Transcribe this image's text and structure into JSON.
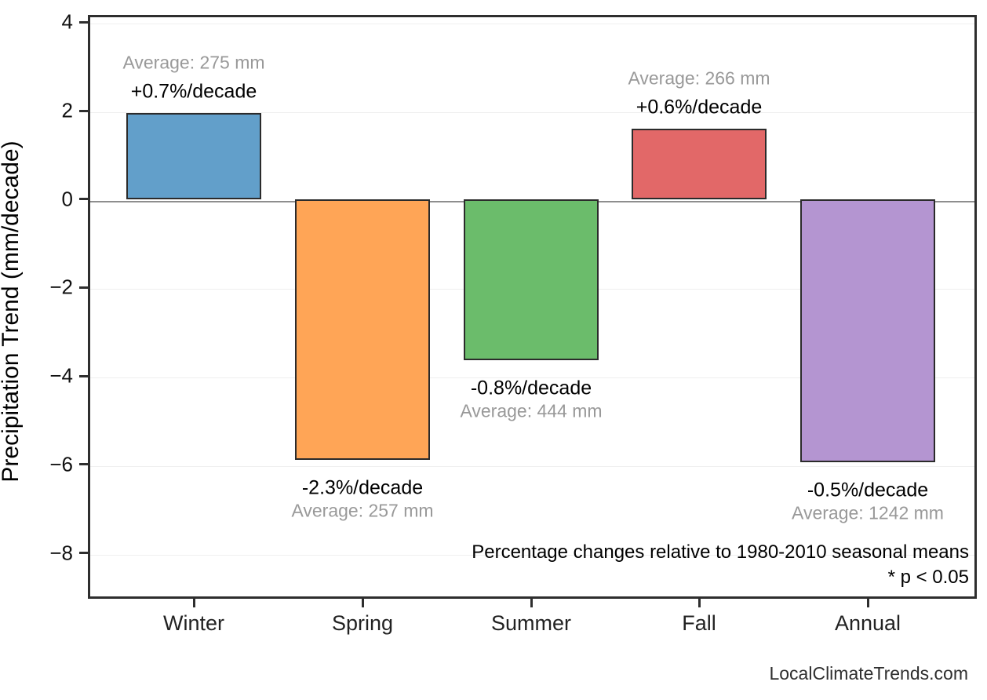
{
  "chart_data": {
    "type": "bar",
    "title": "",
    "xlabel": "",
    "ylabel": "Precipitation Trend (mm/decade)",
    "categories": [
      "Winter",
      "Spring",
      "Summer",
      "Fall",
      "Annual"
    ],
    "values": [
      1.95,
      -5.9,
      -3.65,
      1.6,
      -5.95
    ],
    "bar_labels": [
      {
        "percent": "+0.7%/decade",
        "average": "Average: 275 mm"
      },
      {
        "percent": "-2.3%/decade",
        "average": "Average: 257 mm"
      },
      {
        "percent": "-0.8%/decade",
        "average": "Average: 444 mm"
      },
      {
        "percent": "+0.6%/decade",
        "average": "Average: 266 mm"
      },
      {
        "percent": "-0.5%/decade",
        "average": "Average: 1242 mm"
      }
    ],
    "bar_colors": [
      "#629fca",
      "#ffa556",
      "#6bbc6b",
      "#e26868",
      "#b495d1"
    ],
    "bar_edge_color": "#2b2b2b",
    "yticks": [
      4,
      2,
      0,
      -2,
      -4,
      -6,
      -8
    ],
    "ytick_labels": [
      "4",
      "2",
      "0",
      "−2",
      "−4",
      "−6",
      "−8"
    ],
    "ylim": [
      -9.05,
      4.17
    ],
    "grid": "horizontal-only",
    "legend": "none",
    "zero_line": true,
    "annotations": {
      "note_line1": "Percentage changes relative to 1980-2010 seasonal means",
      "note_line2": "* p < 0.05"
    },
    "watermark": "LocalClimateTrends.com",
    "text_colors": {
      "percent_label": "#000000",
      "average_label": "#999999"
    }
  }
}
